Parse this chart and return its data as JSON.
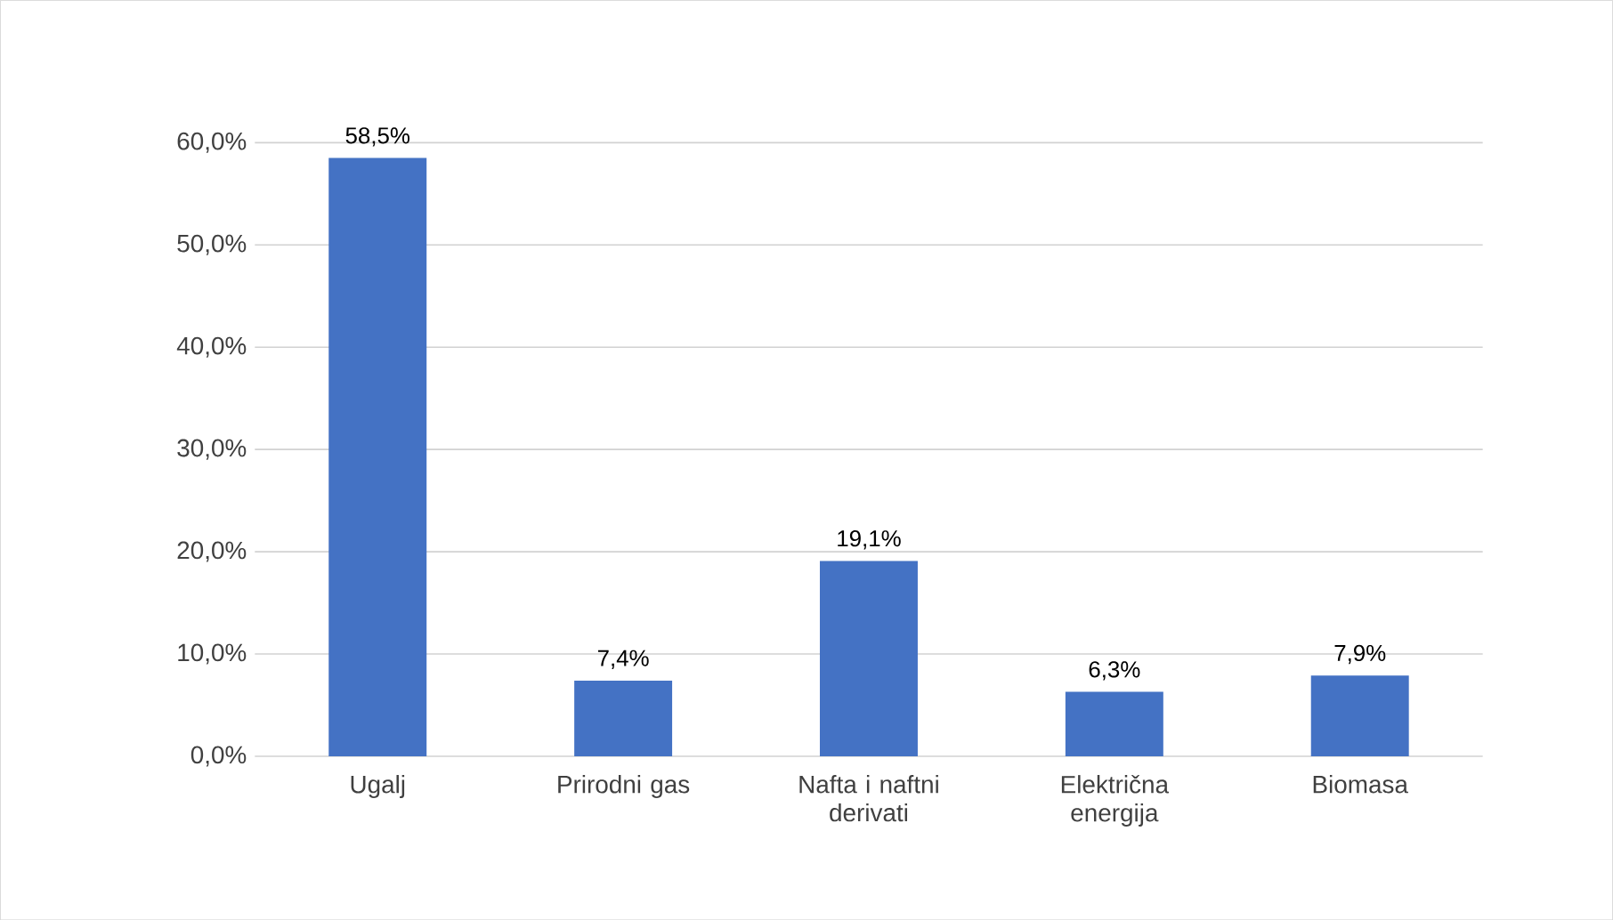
{
  "chart_data": {
    "type": "bar",
    "categories": [
      "Ugalj",
      "Prirodni gas",
      "Nafta i naftni derivati",
      "Električna energija",
      "Biomasa"
    ],
    "values": [
      58.5,
      7.4,
      19.1,
      6.3,
      7.9
    ],
    "value_labels": [
      "58,5%",
      "7,4%",
      "19,1%",
      "6,3%",
      "7,9%"
    ],
    "color": "#4472c4",
    "ylim": [
      0,
      60
    ],
    "yticks": [
      {
        "value": 0,
        "label": "0,0%"
      },
      {
        "value": 10,
        "label": "10,0%"
      },
      {
        "value": 20,
        "label": "20,0%"
      },
      {
        "value": 30,
        "label": "30,0%"
      },
      {
        "value": 40,
        "label": "40,0%"
      },
      {
        "value": 50,
        "label": "50,0%"
      },
      {
        "value": 60,
        "label": "60,0%"
      }
    ],
    "grid": "y"
  }
}
